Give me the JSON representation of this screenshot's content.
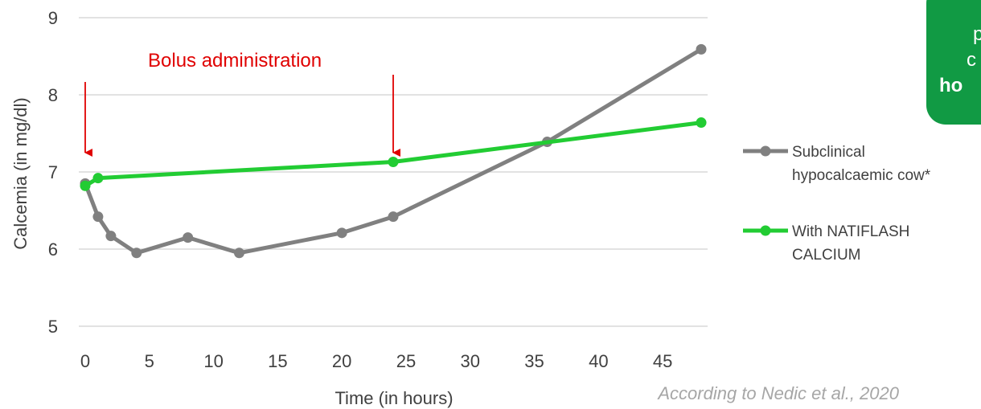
{
  "chart_data": {
    "type": "line",
    "title": "",
    "xlabel": "Time (in hours)",
    "ylabel": "Calcemia (in mg/dl)",
    "xlim": [
      -0.5,
      48.5
    ],
    "ylim": [
      5,
      9
    ],
    "x_ticks": [
      0,
      5,
      10,
      15,
      20,
      25,
      30,
      35,
      40,
      45
    ],
    "y_ticks": [
      5,
      6,
      7,
      8,
      9
    ],
    "grid": "horizontal",
    "legend_position": "right",
    "series": [
      {
        "name": "Subclinical hypocalcaemic cow*",
        "name_lines": [
          "Subclinical",
          "hypocalcaemic cow*"
        ],
        "color": "#808080",
        "points": [
          {
            "x": 0,
            "y": 6.85
          },
          {
            "x": 1,
            "y": 6.42
          },
          {
            "x": 2,
            "y": 6.17
          },
          {
            "x": 4,
            "y": 5.95
          },
          {
            "x": 8,
            "y": 6.15
          },
          {
            "x": 12,
            "y": 5.95
          },
          {
            "x": 20,
            "y": 6.21
          },
          {
            "x": 24,
            "y": 6.42
          },
          {
            "x": 36,
            "y": 7.39
          },
          {
            "x": 48,
            "y": 8.59
          }
        ]
      },
      {
        "name": "With NATIFLASH CALCIUM",
        "name_lines": [
          "With NATIFLASH",
          "CALCIUM"
        ],
        "color": "#22cc33",
        "points": [
          {
            "x": 0,
            "y": 6.82
          },
          {
            "x": 1,
            "y": 6.92
          },
          {
            "x": 24,
            "y": 7.13
          },
          {
            "x": 48,
            "y": 7.64
          }
        ]
      }
    ],
    "annotations": {
      "label": "Bolus administration",
      "arrows_at_x": [
        0,
        24
      ],
      "color": "#e00000"
    }
  },
  "source_note": "According to Nedic et al., 2020",
  "side_box": {
    "lines": [
      "p",
      "c",
      "ho"
    ],
    "color": "#119a44"
  }
}
